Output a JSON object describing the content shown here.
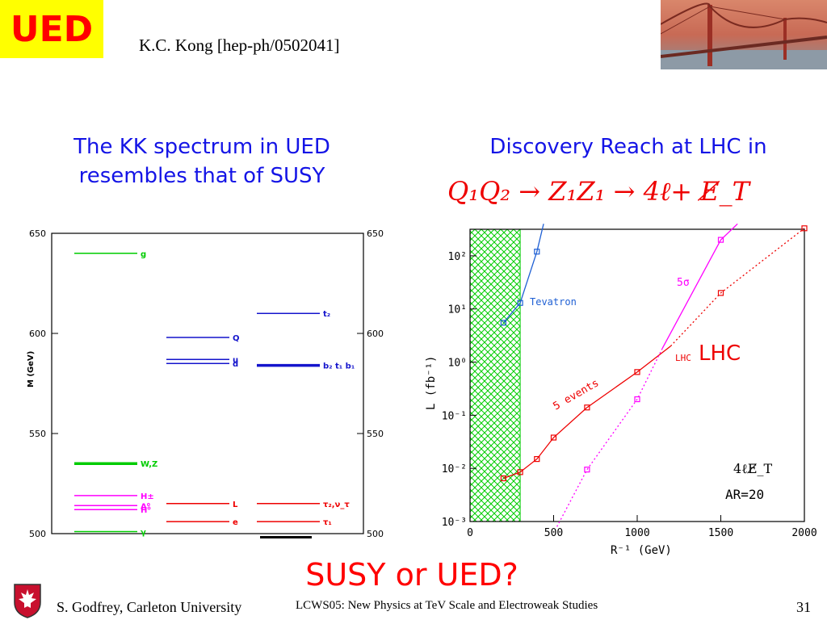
{
  "header": {
    "badge": "UED",
    "reference": "K.C. Kong [hep-ph/0502041]"
  },
  "left": {
    "heading_line1": "The KK spectrum in UED",
    "heading_line2": "resembles that of SUSY",
    "axis": {
      "label": "M (GeV)",
      "ticks": [
        "650",
        "600",
        "550",
        "500"
      ],
      "ymin": 500,
      "ymax": 650
    },
    "levels": [
      {
        "label": "g",
        "mass": 640,
        "column": 0,
        "color": "#00cc00",
        "thick": false
      },
      {
        "label": "W,Z",
        "mass": 535,
        "column": 0,
        "color": "#00cc00",
        "thick": true
      },
      {
        "label": "H±",
        "mass": 519,
        "column": 0,
        "color": "#ff00ff",
        "thick": false
      },
      {
        "label": "A⁰",
        "mass": 514,
        "column": 0,
        "color": "#ff00ff",
        "thick": false
      },
      {
        "label": "H⁰",
        "mass": 512,
        "column": 0,
        "color": "#ff00ff",
        "thick": false
      },
      {
        "label": "γ",
        "mass": 501,
        "column": 0,
        "color": "#00cc00",
        "thick": false
      },
      {
        "label": "Q",
        "mass": 598,
        "column": 1,
        "color": "#1414cc",
        "thick": false
      },
      {
        "label": "u",
        "mass": 587,
        "column": 1,
        "color": "#1414cc",
        "thick": false
      },
      {
        "label": "d",
        "mass": 585,
        "column": 1,
        "color": "#1414cc",
        "thick": false
      },
      {
        "label": "L",
        "mass": 515,
        "column": 1,
        "color": "#ee0000",
        "thick": false
      },
      {
        "label": "e",
        "mass": 506,
        "column": 1,
        "color": "#ee0000",
        "thick": false
      },
      {
        "label": "t₂",
        "mass": 610,
        "column": 2,
        "color": "#1414cc",
        "thick": false
      },
      {
        "label": "b₂ t₁ b₁",
        "mass": 584,
        "column": 2,
        "color": "#1414cc",
        "thick": true
      },
      {
        "label": "τ₂,ν_τ",
        "mass": 515,
        "column": 2,
        "color": "#ee0000",
        "thick": false
      },
      {
        "label": "τ₁",
        "mass": 506,
        "column": 2,
        "color": "#ee0000",
        "thick": false
      }
    ]
  },
  "right": {
    "heading": "Discovery Reach at LHC in",
    "formula": "Q₁Q₂ → Z₁Z₁ → 4ℓ+ E̸_T",
    "chart_data": {
      "type": "line",
      "xlabel": "R⁻¹ (GeV)",
      "ylabel": "L (fb⁻¹)",
      "xlim": [
        0,
        2000
      ],
      "ylim_log10": [
        -3,
        2.5
      ],
      "x_ticks": [
        "0",
        "500",
        "1000",
        "1500",
        "2000"
      ],
      "y_ticks": [
        "10⁻³",
        "10⁻²",
        "10⁻¹",
        "10⁰",
        "10¹",
        "10²"
      ],
      "excluded_band": {
        "x0": 0,
        "x1": 300,
        "color": "#00cc00"
      },
      "series": [
        {
          "name": "Tevatron",
          "color": "#1e5fd4",
          "style": "solid",
          "x": [
            200,
            300,
            400,
            440
          ],
          "y": [
            5.5,
            13,
            120,
            400
          ],
          "markers": [
            true,
            true,
            true,
            false
          ]
        },
        {
          "name": "5 events",
          "color": "#ee0000",
          "style": "solid",
          "x": [
            200,
            300,
            400,
            500,
            700,
            1000,
            1200
          ],
          "y": [
            0.0065,
            0.0085,
            0.015,
            0.038,
            0.14,
            0.65,
            2.0
          ],
          "markers": [
            true,
            true,
            true,
            true,
            true,
            true,
            false
          ]
        },
        {
          "name": "",
          "color": "#ee0000",
          "style": "dotted",
          "x": [
            1200,
            1500,
            2000
          ],
          "y": [
            2.0,
            20,
            330
          ],
          "markers": [
            false,
            true,
            true
          ]
        },
        {
          "name": "5σ",
          "color": "#ff00ff",
          "style": "solid",
          "x": [
            1150,
            1500,
            1600
          ],
          "y": [
            1.8,
            200,
            400
          ],
          "markers": [
            false,
            true,
            false
          ]
        },
        {
          "name": "",
          "color": "#ff00ff",
          "style": "dotted",
          "x": [
            520,
            700,
            1000,
            1150
          ],
          "y": [
            0.0008,
            0.0095,
            0.2,
            1.8
          ],
          "markers": [
            false,
            true,
            true,
            false
          ]
        }
      ],
      "annotations": [
        "LHC",
        "LHC",
        "4ℓE̸_T",
        "AR=20"
      ]
    }
  },
  "question": "SUSY or UED?",
  "footer": {
    "author": "S. Godfrey, Carleton University",
    "conference": "LCWS05: New Physics at TeV Scale and Electroweak Studies",
    "page": "31"
  }
}
